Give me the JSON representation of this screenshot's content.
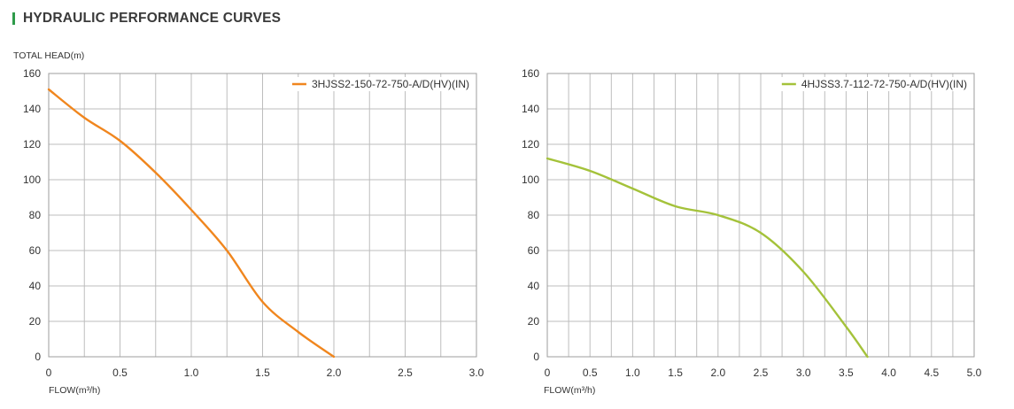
{
  "header": {
    "title": "HYDRAULIC PERFORMANCE CURVES",
    "accent_color": "#2e9b4a"
  },
  "chart_data": [
    {
      "type": "line",
      "ylabel": "TOTAL HEAD(m)",
      "xlabel": "FLOW(m³/h)",
      "xlim": [
        0,
        3.0
      ],
      "ylim": [
        0,
        160
      ],
      "x_ticks": [
        "0",
        "0.5",
        "1.0",
        "1.5",
        "2.0",
        "2.5",
        "3.0"
      ],
      "y_ticks": [
        "0",
        "20",
        "40",
        "60",
        "80",
        "100",
        "120",
        "140",
        "160"
      ],
      "grid": true,
      "legend_position": "top-right",
      "series": [
        {
          "name": "3HJSS2-150-72-750-A/D(HV)(IN)",
          "color": "#f0861e",
          "x": [
            0,
            0.25,
            0.5,
            0.75,
            1.0,
            1.25,
            1.5,
            1.75,
            2.0
          ],
          "y": [
            151,
            135,
            122,
            104,
            83,
            60,
            31,
            14,
            0
          ]
        }
      ]
    },
    {
      "type": "line",
      "ylabel": "",
      "xlabel": "FLOW(m³/h)",
      "xlim": [
        0,
        5.0
      ],
      "ylim": [
        0,
        160
      ],
      "x_ticks": [
        "0",
        "0.5",
        "1.0",
        "1.5",
        "2.0",
        "2.5",
        "3.0",
        "3.5",
        "4.0",
        "4.5",
        "5.0"
      ],
      "y_ticks": [
        "0",
        "20",
        "40",
        "60",
        "80",
        "100",
        "120",
        "140",
        "160"
      ],
      "grid": true,
      "legend_position": "top-right",
      "series": [
        {
          "name": "4HJSS3.7-112-72-750-A/D(HV)(IN)",
          "color": "#a4c23a",
          "x": [
            0,
            0.5,
            1.0,
            1.5,
            2.0,
            2.5,
            3.0,
            3.5,
            3.75
          ],
          "y": [
            112,
            105,
            95,
            85,
            80,
            70,
            48,
            17,
            0
          ]
        }
      ]
    }
  ]
}
